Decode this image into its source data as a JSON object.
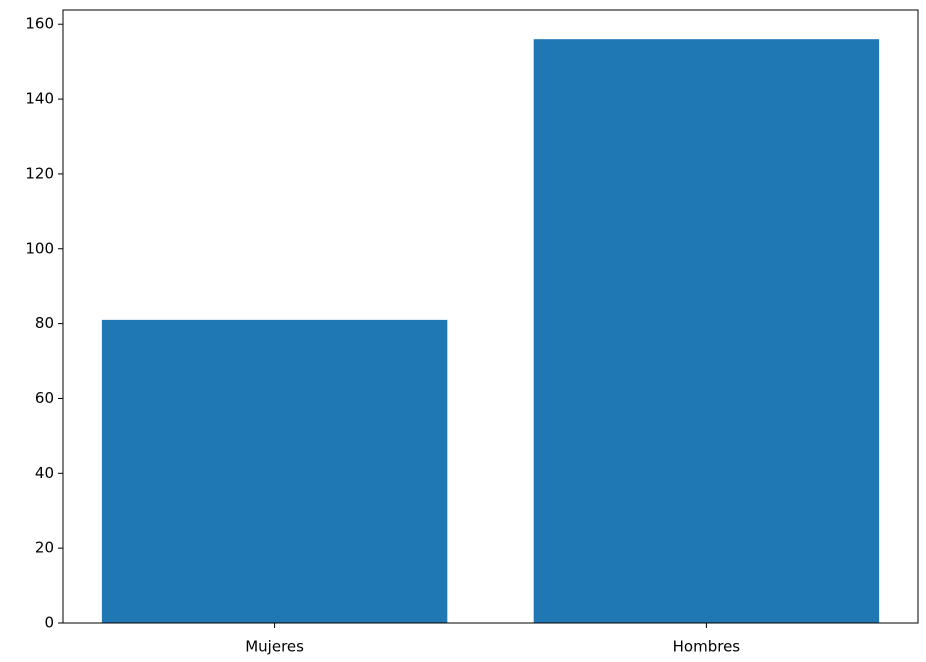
{
  "chart_data": {
    "type": "bar",
    "categories": [
      "Mujeres",
      "Hombres"
    ],
    "values": [
      81,
      156
    ],
    "color": "#1f77b4",
    "ylim": [
      0,
      163.8
    ],
    "yticks": [
      0,
      20,
      40,
      60,
      80,
      100,
      120,
      140,
      160
    ],
    "grid": false
  }
}
